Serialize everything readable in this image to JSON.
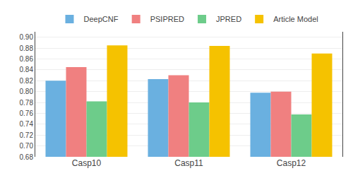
{
  "chart_data": {
    "type": "bar",
    "categories": [
      "Casp10",
      "Casp11",
      "Casp12"
    ],
    "series": [
      {
        "name": "DeepCNF",
        "color": "#6ab0e0",
        "values": [
          0.82,
          0.823,
          0.798
        ]
      },
      {
        "name": "PSIPRED",
        "color": "#f08080",
        "values": [
          0.845,
          0.83,
          0.8
        ]
      },
      {
        "name": "JPRED",
        "color": "#6dcc8a",
        "values": [
          0.782,
          0.78,
          0.758
        ]
      },
      {
        "name": "Article Model",
        "color": "#f5c200",
        "values": [
          0.885,
          0.884,
          0.87
        ]
      }
    ],
    "ylim": [
      0.68,
      0.91
    ],
    "yticks": [
      0.68,
      {
        "value": 0.7,
        "label": "0.70"
      },
      0.72,
      0.74,
      0.76,
      0.78,
      {
        "value": 0.8,
        "label": "0.80"
      },
      0.82,
      0.84,
      0.86,
      0.88,
      {
        "value": 0.9,
        "label": "0.90"
      }
    ],
    "grid": true,
    "legend": "top"
  }
}
